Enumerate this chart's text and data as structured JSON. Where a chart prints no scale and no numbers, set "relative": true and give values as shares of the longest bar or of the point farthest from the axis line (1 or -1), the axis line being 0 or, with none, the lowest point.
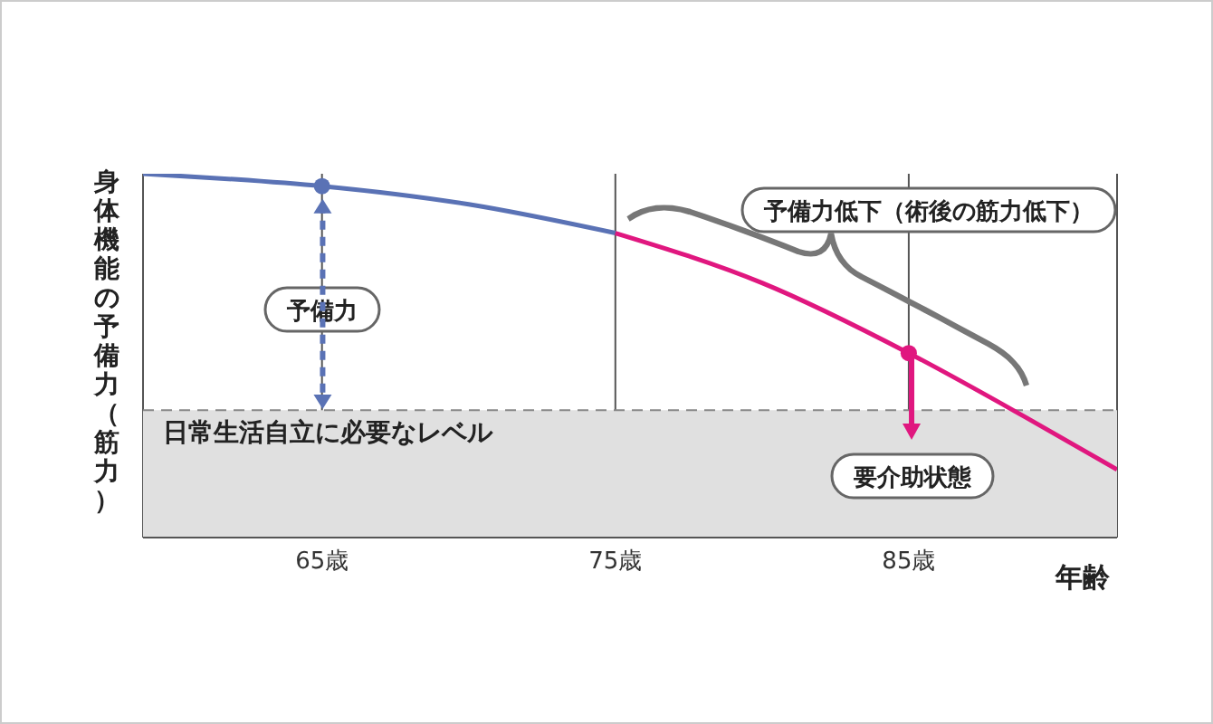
{
  "chart_data": {
    "type": "line",
    "relative": true,
    "xlabel": "年齢",
    "ylabel": "身体機能の予備力（筋力）",
    "xlim": [
      58.9,
      92.1
    ],
    "xticks": [
      {
        "value": 65,
        "label": "65歳"
      },
      {
        "value": 75,
        "label": "75歳"
      },
      {
        "value": 85,
        "label": "85歳"
      }
    ],
    "grid": "x",
    "series": [
      {
        "color": "#5a72b5",
        "marker": "none",
        "x": [
          58.9,
          62,
          65,
          70,
          75
        ],
        "values": [
          1,
          0.985,
          0.966,
          0.916,
          0.837
        ]
      },
      {
        "color": "#e0177f",
        "marker": "none",
        "x": [
          75,
          80,
          85,
          89,
          92.1
        ],
        "values": [
          0.837,
          0.7,
          0.507,
          0.33,
          0.187
        ]
      },
      {
        "type": "scatter",
        "color": "#5a72b5",
        "marker": "circle",
        "x": [
          65
        ],
        "values": [
          0.966
        ]
      },
      {
        "type": "scatter",
        "color": "#e0177f",
        "marker": "circle",
        "x": [
          85
        ],
        "values": [
          0.507
        ]
      }
    ],
    "bands": [
      {
        "axis": "y",
        "from": 0,
        "to": 0.35,
        "color": "#e0e0e0"
      }
    ],
    "ref_lines": [
      {
        "axis": "y",
        "value": 0.35,
        "label": "日常生活自立に必要なレベル",
        "color": "#888888",
        "line_style": "dashed"
      }
    ],
    "annotations": [
      "予備力",
      "予備力低下（術後の筋力低下）",
      "要介助状態"
    ]
  }
}
